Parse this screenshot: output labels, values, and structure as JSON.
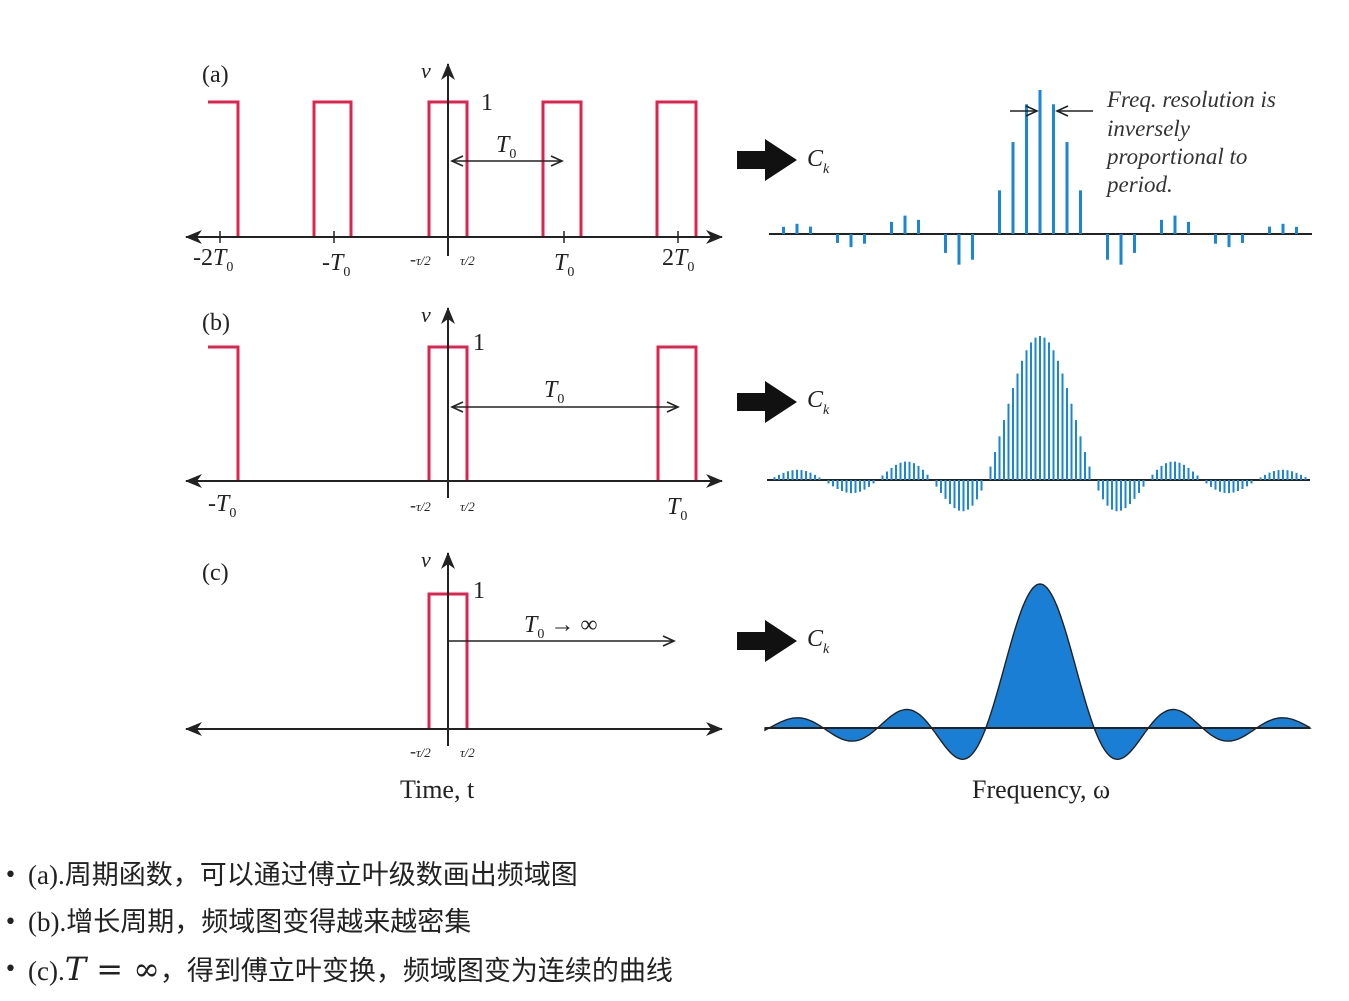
{
  "panels": [
    {
      "label": "(a)",
      "v_label": "v",
      "height_label": "1",
      "period_label": "T",
      "period_sub": "0",
      "ticks": [
        {
          "pre": "-2",
          "var": "T",
          "sub": "0"
        },
        {
          "pre": "-",
          "var": "T",
          "sub": "0"
        },
        {
          "pre": "-",
          "var": "τ/2"
        },
        {
          "var": "τ/2"
        },
        {
          "var": "T",
          "sub": "0"
        },
        {
          "pre": "2",
          "var": "T",
          "sub": "0"
        }
      ]
    },
    {
      "label": "(b)",
      "v_label": "v",
      "height_label": "1",
      "period_label": "T",
      "period_sub": "0",
      "ticks": [
        {
          "pre": "-",
          "var": "T",
          "sub": "0"
        },
        {
          "pre": "-",
          "var": "τ/2"
        },
        {
          "var": "τ/2"
        },
        {
          "var": "T",
          "sub": "0"
        }
      ]
    },
    {
      "label": "(c)",
      "v_label": "v",
      "height_label": "1",
      "period_label": "T",
      "period_sub": "0",
      "period_suffix": "→ ∞",
      "ticks": [
        {
          "pre": "-",
          "var": "τ/2"
        },
        {
          "var": "τ/2"
        }
      ]
    }
  ],
  "spectrum_label": {
    "var": "C",
    "sub": "k"
  },
  "annotation": [
    "Freq. resolution is",
    "inversely",
    "proportional to",
    "period."
  ],
  "x_titles": {
    "time": "Time, t",
    "frequency": "Frequency, ω"
  },
  "colors": {
    "pulse": "#e0234e",
    "spectrum": "#1a86d6",
    "spectrum_fill": "#1a7fd4",
    "axis": "#222222",
    "arrow": "#111111"
  },
  "notes": [
    {
      "prefix": "(a).",
      "text": "周期函数，可以通过傅立叶级数画出频域图"
    },
    {
      "prefix": "(b).",
      "text": "增长周期，频域图变得越来越密集"
    },
    {
      "prefix": "(c).",
      "math": "T = ∞",
      "text": "，得到傅立叶变换，频域图变为连续的曲线"
    }
  ]
}
